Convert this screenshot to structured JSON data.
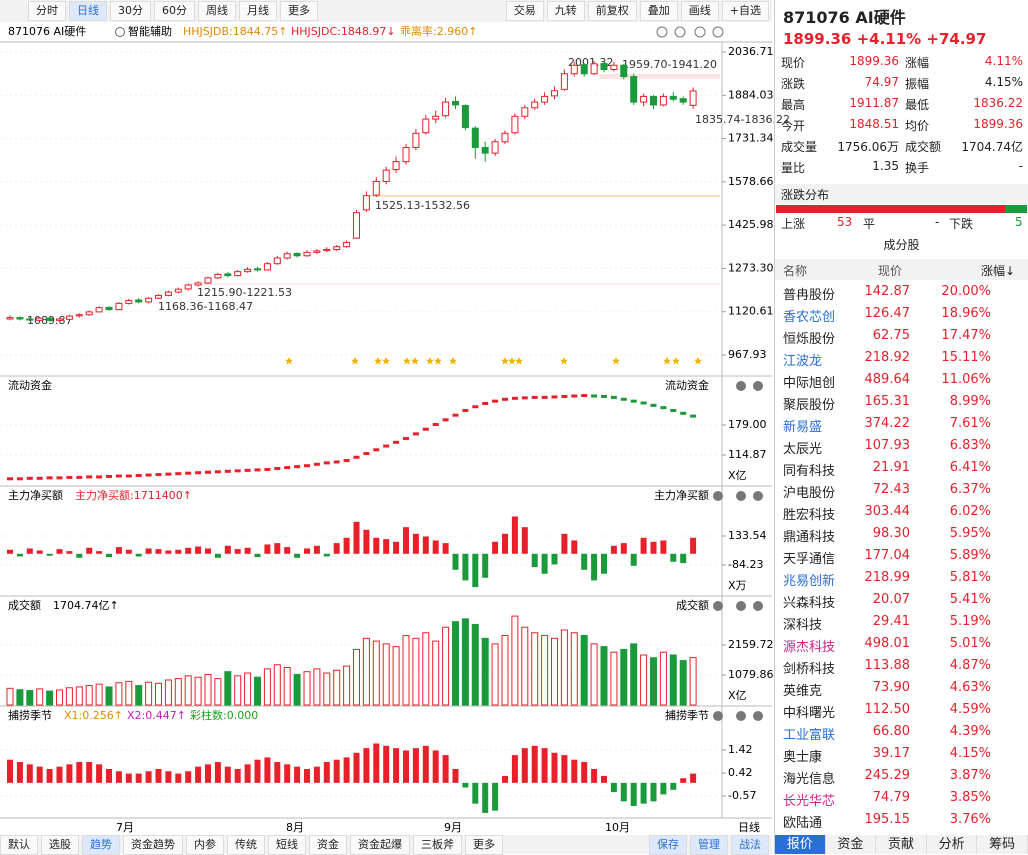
{
  "toolbar": {
    "left": [
      "分时",
      "日线",
      "30分",
      "60分",
      "周线",
      "月线",
      "更多"
    ],
    "selected": 1,
    "right": [
      "交易",
      "九转",
      "前复权",
      "叠加",
      "画线",
      "+自选"
    ]
  },
  "header": {
    "symbol": "871076 AI硬件",
    "assist": "智能辅助",
    "indicators": [
      {
        "text": "HHJSJDB:1844.75↑",
        "color": "#e08a00"
      },
      {
        "text": "HHJSJDC:1848.97↓",
        "color": "#e8202a"
      },
      {
        "text": "乖离率:2.960↑",
        "color": "#e08a00"
      }
    ]
  },
  "main_chart": {
    "type": "candlestick",
    "ylim": [
      967.93,
      2036.71
    ],
    "yticks": [
      2036.71,
      1884.03,
      1731.34,
      1578.66,
      1425.98,
      {
        "value": 1273.3,
        "label": "1273.30"
      },
      1120.61,
      967.93
    ],
    "annotations": [
      "2001.32",
      "1959.70-1941.20",
      "1835.74-1836.22",
      "1525.13-1532.56",
      "1215.90-1221.53",
      "1168.36-1168.47",
      "1089.87"
    ],
    "candles": [
      [
        1095,
        1108,
        1090,
        1100
      ],
      [
        1100,
        1104,
        1089.87,
        1095
      ],
      [
        1095,
        1100,
        1088,
        1092
      ],
      [
        1090,
        1102,
        1088,
        1098
      ],
      [
        1098,
        1100,
        1086,
        1090
      ],
      [
        1090,
        1098,
        1087,
        1095
      ],
      [
        1094,
        1110,
        1092,
        1105
      ],
      [
        1106,
        1115,
        1100,
        1110
      ],
      [
        1110,
        1125,
        1106,
        1120
      ],
      [
        1120,
        1140,
        1118,
        1135
      ],
      [
        1136,
        1140,
        1124,
        1128
      ],
      [
        1128,
        1155,
        1126,
        1150
      ],
      [
        1150,
        1166,
        1146,
        1160
      ],
      [
        1162,
        1168.47,
        1150,
        1155
      ],
      [
        1155,
        1172,
        1150,
        1168
      ],
      [
        1168,
        1182,
        1165,
        1178
      ],
      [
        1178,
        1195,
        1175,
        1190
      ],
      [
        1190,
        1206,
        1186,
        1200
      ],
      [
        1201,
        1220,
        1196,
        1215
      ],
      [
        1215,
        1228,
        1210,
        1222
      ],
      [
        1222,
        1245,
        1218,
        1240
      ],
      [
        1240,
        1258,
        1236,
        1252
      ],
      [
        1254,
        1260,
        1242,
        1248
      ],
      [
        1248,
        1268,
        1245,
        1262
      ],
      [
        1262,
        1278,
        1258,
        1270
      ],
      [
        1272,
        1280,
        1262,
        1268
      ],
      [
        1268,
        1296,
        1265,
        1290
      ],
      [
        1290,
        1318,
        1286,
        1310
      ],
      [
        1310,
        1332,
        1305,
        1325
      ],
      [
        1326,
        1330,
        1312,
        1318
      ],
      [
        1318,
        1338,
        1314,
        1330
      ],
      [
        1330,
        1342,
        1325,
        1335
      ],
      [
        1336,
        1348,
        1330,
        1340
      ],
      [
        1340,
        1356,
        1335,
        1350
      ],
      [
        1350,
        1372,
        1346,
        1365
      ],
      [
        1380,
        1480,
        1378,
        1470
      ],
      [
        1480,
        1545,
        1472,
        1530
      ],
      [
        1532,
        1595,
        1525,
        1580
      ],
      [
        1580,
        1632,
        1570,
        1620
      ],
      [
        1622,
        1668,
        1610,
        1650
      ],
      [
        1650,
        1712,
        1640,
        1700
      ],
      [
        1700,
        1765,
        1690,
        1750
      ],
      [
        1752,
        1815,
        1745,
        1800
      ],
      [
        1800,
        1830,
        1785,
        1810
      ],
      [
        1812,
        1875,
        1805,
        1860
      ],
      [
        1862,
        1880,
        1835,
        1850
      ],
      [
        1848,
        1852,
        1760,
        1770
      ],
      [
        1768,
        1775,
        1660,
        1700
      ],
      [
        1700,
        1720,
        1650,
        1680
      ],
      [
        1680,
        1730,
        1670,
        1720
      ],
      [
        1720,
        1760,
        1712,
        1750
      ],
      [
        1752,
        1820,
        1745,
        1810
      ],
      [
        1810,
        1850,
        1800,
        1840
      ],
      [
        1840,
        1872,
        1832,
        1860
      ],
      [
        1860,
        1895,
        1850,
        1880
      ],
      [
        1882,
        1915,
        1870,
        1900
      ],
      [
        1905,
        1975,
        1900,
        1960
      ],
      [
        1960,
        2001.32,
        1950,
        1990
      ],
      [
        1992,
        1998,
        1950,
        1960
      ],
      [
        1960,
        2005,
        1955,
        1995
      ],
      [
        1996,
        2000,
        1965,
        1975
      ],
      [
        1975,
        2002,
        1968,
        1990
      ],
      [
        1990,
        1995,
        1940,
        1950
      ],
      [
        1950,
        1960,
        1850,
        1860
      ],
      [
        1860,
        1890,
        1845,
        1880
      ],
      [
        1880,
        1885,
        1835,
        1850
      ],
      [
        1850,
        1890,
        1845,
        1880
      ],
      [
        1880,
        1895,
        1862,
        1870
      ],
      [
        1872,
        1880,
        1850,
        1860
      ],
      [
        1848.51,
        1911.87,
        1836.22,
        1899.36
      ]
    ]
  },
  "flow_panel": {
    "type": "dot-line",
    "title": "流动资金",
    "unit": "X亿",
    "ylim": [
      50.74,
      243.13
    ],
    "yticks": [
      {
        "value": 179,
        "label": "179.00"
      },
      114.87
    ],
    "values": [
      64,
      64,
      65,
      65,
      66,
      66,
      67,
      67,
      68,
      68,
      69,
      70,
      70,
      71,
      72,
      73,
      74,
      75,
      76,
      77,
      78,
      79,
      80,
      81,
      82,
      83,
      84,
      86,
      88,
      90,
      92,
      95,
      98,
      100,
      103,
      110,
      118,
      126,
      134,
      142,
      150,
      160,
      170,
      180,
      190,
      200,
      210,
      218,
      225,
      230,
      234,
      236,
      237,
      238,
      238,
      239,
      240,
      241,
      242,
      241,
      240,
      238,
      234,
      230,
      226,
      221,
      216,
      210,
      204,
      198
    ]
  },
  "net_buy_panel": {
    "type": "bar",
    "title": "主力净买额",
    "readout": "主力净买额:1711400↑",
    "unit": "X万",
    "ylim": [
      -309.5,
      403.87
    ],
    "yticks": [
      133.54,
      -84.23
    ],
    "values": [
      30,
      -20,
      40,
      25,
      -15,
      35,
      20,
      -30,
      45,
      20,
      -25,
      50,
      30,
      -20,
      40,
      35,
      25,
      30,
      45,
      55,
      40,
      -30,
      60,
      35,
      45,
      -25,
      70,
      80,
      50,
      -30,
      40,
      60,
      -20,
      80,
      120,
      240,
      180,
      120,
      110,
      90,
      200,
      150,
      130,
      100,
      80,
      -120,
      -200,
      -250,
      -180,
      90,
      150,
      280,
      200,
      -100,
      -150,
      -80,
      150,
      100,
      -120,
      -200,
      -150,
      60,
      80,
      -90,
      120,
      90,
      100,
      -60,
      -70,
      120
    ]
  },
  "volume_panel": {
    "type": "volume",
    "title": "成交额",
    "readout": "1704.74亿↑",
    "unit": "X亿",
    "ylim": [
      0,
      3419.55
    ],
    "yticks": [
      2159.72,
      1079.86
    ],
    "values": [
      600,
      550,
      520,
      580,
      500,
      540,
      620,
      650,
      700,
      750,
      650,
      800,
      850,
      700,
      820,
      780,
      900,
      950,
      1050,
      1000,
      1100,
      950,
      1200,
      1050,
      1150,
      1000,
      1300,
      1450,
      1350,
      1100,
      1200,
      1300,
      1150,
      1250,
      1400,
      2000,
      2400,
      2300,
      2200,
      2100,
      2500,
      2400,
      2600,
      2300,
      2800,
      3000,
      3100,
      2900,
      2400,
      2200,
      2500,
      3200,
      2800,
      2600,
      2500,
      2400,
      2700,
      2600,
      2500,
      2200,
      2100,
      1900,
      2000,
      2200,
      1800,
      1700,
      1900,
      1800,
      1600,
      1704.74
    ]
  },
  "indicator_panel": {
    "type": "bar",
    "title": "捕捞季节",
    "readouts": [
      {
        "text": "X1:0.256↑",
        "color": "#e08a00"
      },
      {
        "text": "X2:0.447↑",
        "color": "#c020c0"
      },
      {
        "text": "彩柱数:0.000",
        "color": "#20a020"
      }
    ],
    "ylim": [
      -1.39,
      2.63
    ],
    "yticks": [
      1.42,
      0.42,
      -0.57
    ],
    "values": [
      1.0,
      0.9,
      0.8,
      0.7,
      0.6,
      0.7,
      0.8,
      0.9,
      0.9,
      0.8,
      0.6,
      0.5,
      0.4,
      0.4,
      0.5,
      0.6,
      0.5,
      0.4,
      0.5,
      0.7,
      0.8,
      0.9,
      0.7,
      0.6,
      0.8,
      1.0,
      1.1,
      0.9,
      0.8,
      0.7,
      0.6,
      0.7,
      0.9,
      1.0,
      1.1,
      1.3,
      1.5,
      1.7,
      1.6,
      1.5,
      1.4,
      1.5,
      1.6,
      1.4,
      1.2,
      0.6,
      -0.2,
      -0.9,
      -1.3,
      -1.2,
      0.3,
      1.2,
      1.5,
      1.6,
      1.5,
      1.3,
      1.2,
      1.0,
      0.9,
      0.6,
      0.3,
      -0.4,
      -0.8,
      -1.0,
      -0.9,
      -0.8,
      -0.5,
      -0.3,
      0.2,
      0.4
    ]
  },
  "x_axis": {
    "months": [
      "7月",
      "8月",
      "9月",
      "10月"
    ],
    "period": "日线"
  },
  "bottom_tabs": {
    "left": [
      "默认",
      "选股",
      "趋势",
      "资金趋势",
      "内参",
      "传统",
      "短线",
      "资金",
      "资金起爆",
      "三板斧",
      "更多"
    ],
    "selected": 2,
    "right": [
      "保存",
      "管理",
      "战法"
    ]
  },
  "quote": {
    "title": "871076 AI硬件",
    "price": "1899.36",
    "change_pct": "+4.11%",
    "change": "+74.97",
    "rows": [
      [
        "现价",
        "1899.36",
        "涨幅",
        "4.11%"
      ],
      [
        "涨跌",
        "74.97",
        "振幅",
        "4.15%"
      ],
      [
        "最高",
        "1911.87",
        "最低",
        "1836.22"
      ],
      [
        "今开",
        "1848.51",
        "均价",
        "1899.36"
      ],
      [
        "成交量",
        "1756.06万",
        "成交额",
        "1704.74亿"
      ],
      [
        "量比",
        "1.35",
        "换手",
        "-"
      ]
    ],
    "value_colors": [
      [
        "#e8202a",
        "#e8202a"
      ],
      [
        "#e8202a",
        "#222"
      ],
      [
        "#e8202a",
        "#e8202a"
      ],
      [
        "#e8202a",
        "#e8202a"
      ],
      [
        "#222",
        "#222"
      ],
      [
        "#222",
        "#222"
      ]
    ]
  },
  "distribution": {
    "title": "涨跌分布",
    "up_label": "上涨",
    "up": 53,
    "flat_label": "平",
    "flat": "-",
    "down_label": "下跌",
    "down": 5
  },
  "constituents": {
    "title": "成分股",
    "columns": [
      "名称",
      "现价",
      "涨幅↓"
    ],
    "rows": [
      [
        "普冉股份",
        "142.87",
        "20.00%"
      ],
      [
        "香农芯创",
        "126.47",
        "18.96%"
      ],
      [
        "恒烁股份",
        "62.75",
        "17.47%"
      ],
      [
        "江波龙",
        "218.92",
        "15.11%"
      ],
      [
        "中际旭创",
        "489.64",
        "11.06%"
      ],
      [
        "聚辰股份",
        "165.31",
        "8.99%"
      ],
      [
        "新易盛",
        "374.22",
        "7.61%"
      ],
      [
        "太辰光",
        "107.93",
        "6.83%"
      ],
      [
        "同有科技",
        "21.91",
        "6.41%"
      ],
      [
        "沪电股份",
        "72.43",
        "6.37%"
      ],
      [
        "胜宏科技",
        "303.44",
        "6.02%"
      ],
      [
        "鼎通科技",
        "98.30",
        "5.95%"
      ],
      [
        "天孚通信",
        "177.04",
        "5.89%"
      ],
      [
        "兆易创新",
        "218.99",
        "5.81%"
      ],
      [
        "兴森科技",
        "20.07",
        "5.41%"
      ],
      [
        "深科技",
        "29.41",
        "5.19%"
      ],
      [
        "源杰科技",
        "498.01",
        "5.01%"
      ],
      [
        "剑桥科技",
        "113.88",
        "4.87%"
      ],
      [
        "英维克",
        "73.90",
        "4.63%"
      ],
      [
        "中科曙光",
        "112.50",
        "4.59%"
      ],
      [
        "工业富联",
        "66.80",
        "4.39%"
      ],
      [
        "奥士康",
        "39.17",
        "4.15%"
      ],
      [
        "海光信息",
        "245.29",
        "3.87%"
      ],
      [
        "长光华芯",
        "74.79",
        "3.85%"
      ],
      [
        "欧陆通",
        "195.15",
        "3.76%"
      ]
    ],
    "name_colors": [
      "#222",
      "#2a6fd6",
      "#222",
      "#2a6fd6",
      "#222",
      "#222",
      "#2a6fd6",
      "#222",
      "#222",
      "#222",
      "#222",
      "#222",
      "#222",
      "#2a6fd6",
      "#222",
      "#222",
      "#d0208a",
      "#222",
      "#222",
      "#222",
      "#2a6fd6",
      "#222",
      "#222",
      "#d0208a",
      "#222"
    ]
  },
  "side_tabs": {
    "items": [
      "报价",
      "资金",
      "贡献",
      "分析",
      "筹码"
    ],
    "selected": 0
  }
}
